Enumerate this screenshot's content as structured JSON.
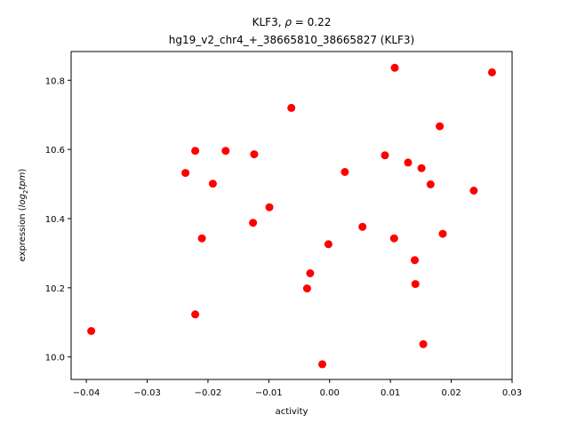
{
  "chart_data": {
    "type": "scatter",
    "title_line1_prefix": "KLF3, ",
    "title_line1_rho": "ρ",
    "title_line1_value": " = 0.22",
    "title_line2": "hg19_v2_chr4_+_38665810_38665827 (KLF3)",
    "xlabel": "activity",
    "ylabel_prefix": "expression (",
    "ylabel_log": "log",
    "ylabel_sub": "2",
    "ylabel_tpm": "tpm",
    "ylabel_suffix": ")",
    "xlim": [
      -0.0425,
      0.03
    ],
    "ylim": [
      9.935,
      10.883
    ],
    "x_ticks": [
      {
        "value": -0.04,
        "label": "−0.04"
      },
      {
        "value": -0.03,
        "label": "−0.03"
      },
      {
        "value": -0.02,
        "label": "−0.02"
      },
      {
        "value": -0.01,
        "label": "−0.01"
      },
      {
        "value": 0.0,
        "label": "0.00"
      },
      {
        "value": 0.01,
        "label": "0.01"
      },
      {
        "value": 0.02,
        "label": "0.02"
      },
      {
        "value": 0.03,
        "label": "0.03"
      }
    ],
    "y_ticks": [
      {
        "value": 10.0,
        "label": "10.0"
      },
      {
        "value": 10.2,
        "label": "10.2"
      },
      {
        "value": 10.4,
        "label": "10.4"
      },
      {
        "value": 10.6,
        "label": "10.6"
      },
      {
        "value": 10.8,
        "label": "10.8"
      }
    ],
    "marker_color": "#ff0000",
    "grid": false,
    "points": [
      {
        "x": -0.0392,
        "y": 10.075
      },
      {
        "x": -0.0237,
        "y": 10.532
      },
      {
        "x": -0.0221,
        "y": 10.596
      },
      {
        "x": -0.0221,
        "y": 10.123
      },
      {
        "x": -0.021,
        "y": 10.343
      },
      {
        "x": -0.0192,
        "y": 10.501
      },
      {
        "x": -0.0171,
        "y": 10.596
      },
      {
        "x": -0.0126,
        "y": 10.388
      },
      {
        "x": -0.0124,
        "y": 10.586
      },
      {
        "x": -0.0099,
        "y": 10.433
      },
      {
        "x": -0.0063,
        "y": 10.72
      },
      {
        "x": -0.0037,
        "y": 10.198
      },
      {
        "x": -0.0032,
        "y": 10.242
      },
      {
        "x": -0.0012,
        "y": 9.979
      },
      {
        "x": -0.0002,
        "y": 10.326
      },
      {
        "x": 0.0025,
        "y": 10.535
      },
      {
        "x": 0.0054,
        "y": 10.376
      },
      {
        "x": 0.0091,
        "y": 10.583
      },
      {
        "x": 0.0106,
        "y": 10.343
      },
      {
        "x": 0.0107,
        "y": 10.836
      },
      {
        "x": 0.0129,
        "y": 10.562
      },
      {
        "x": 0.014,
        "y": 10.28
      },
      {
        "x": 0.0141,
        "y": 10.211
      },
      {
        "x": 0.0151,
        "y": 10.546
      },
      {
        "x": 0.0154,
        "y": 10.037
      },
      {
        "x": 0.0166,
        "y": 10.499
      },
      {
        "x": 0.0181,
        "y": 10.667
      },
      {
        "x": 0.0186,
        "y": 10.356
      },
      {
        "x": 0.0237,
        "y": 10.481
      },
      {
        "x": 0.0267,
        "y": 10.823
      }
    ]
  }
}
